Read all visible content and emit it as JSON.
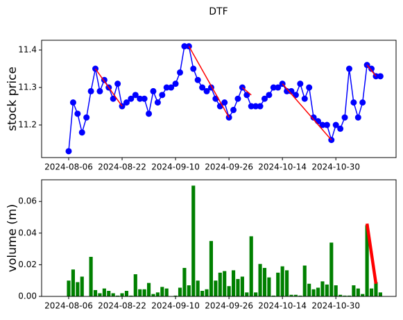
{
  "chart_data": [
    {
      "type": "line",
      "title": "DTF",
      "ylabel": "stock price",
      "ylabel_color": "#0000ff",
      "color": "#0000ff",
      "marker": "o",
      "categories": [
        "2024-08-06",
        null,
        null,
        null,
        null,
        null,
        null,
        null,
        null,
        null,
        null,
        null,
        "2024-08-22",
        null,
        null,
        null,
        null,
        null,
        null,
        null,
        null,
        null,
        null,
        null,
        "2024-09-10",
        null,
        null,
        null,
        null,
        null,
        null,
        null,
        null,
        null,
        null,
        null,
        "2024-09-26",
        null,
        null,
        null,
        null,
        null,
        null,
        null,
        null,
        null,
        null,
        null,
        "2024-10-14",
        null,
        null,
        null,
        null,
        null,
        null,
        null,
        null,
        null,
        null,
        null,
        "2024-10-30",
        null,
        null,
        null,
        null,
        null,
        null,
        null,
        null,
        null,
        null
      ],
      "values": [
        11.13,
        11.26,
        11.23,
        11.18,
        11.22,
        11.29,
        11.35,
        11.29,
        11.32,
        11.3,
        11.27,
        11.31,
        11.25,
        11.26,
        11.27,
        11.28,
        11.27,
        11.27,
        11.23,
        11.29,
        11.26,
        11.28,
        11.3,
        11.3,
        11.31,
        11.34,
        11.41,
        11.41,
        11.35,
        11.32,
        11.3,
        11.29,
        11.3,
        11.27,
        11.25,
        11.26,
        11.22,
        11.24,
        11.27,
        11.3,
        11.28,
        11.25,
        11.25,
        11.25,
        11.27,
        11.28,
        11.3,
        11.3,
        11.31,
        11.29,
        11.29,
        11.28,
        11.31,
        11.27,
        11.3,
        11.22,
        11.21,
        11.2,
        11.2,
        11.16,
        11.2,
        11.19,
        11.22,
        11.35,
        11.26,
        11.22,
        11.26,
        11.36,
        11.35,
        11.33,
        11.33
      ],
      "trend_lines": [
        {
          "x": [
            6,
            12
          ],
          "values": [
            11.35,
            11.25
          ]
        },
        {
          "x": [
            27,
            36
          ],
          "values": [
            11.41,
            11.22
          ]
        },
        {
          "x": [
            39,
            41
          ],
          "values": [
            11.3,
            11.28
          ]
        },
        {
          "x": [
            48,
            59
          ],
          "values": [
            11.31,
            11.16
          ]
        },
        {
          "x": [
            67,
            69
          ],
          "values": [
            11.36,
            11.33
          ]
        }
      ],
      "trend_color": "#ff0000",
      "ylim": [
        11.113,
        11.426
      ],
      "yticks": [
        {
          "value": 11.2,
          "label": "11.2"
        },
        {
          "value": 11.3,
          "label": "11.3"
        },
        {
          "value": 11.4,
          "label": "11.4"
        }
      ]
    },
    {
      "type": "bar",
      "ylabel": "volume (m)",
      "ylabel_color": "#008000",
      "color": "#008000",
      "categories": [
        "2024-08-06",
        null,
        null,
        null,
        null,
        null,
        null,
        null,
        null,
        null,
        null,
        null,
        "2024-08-22",
        null,
        null,
        null,
        null,
        null,
        null,
        null,
        null,
        null,
        null,
        null,
        "2024-09-10",
        null,
        null,
        null,
        null,
        null,
        null,
        null,
        null,
        null,
        null,
        null,
        "2024-09-26",
        null,
        null,
        null,
        null,
        null,
        null,
        null,
        null,
        null,
        null,
        null,
        "2024-10-14",
        null,
        null,
        null,
        null,
        null,
        null,
        null,
        null,
        null,
        null,
        null,
        "2024-10-30",
        null,
        null,
        null,
        null,
        null,
        null,
        null,
        null,
        null,
        null
      ],
      "values": [
        0.01,
        0.017,
        0.009,
        0.0125,
        0,
        0.025,
        0.004,
        0.002,
        0.005,
        0.0035,
        0.002,
        0.0005,
        0.002,
        0.0035,
        0.0005,
        0.014,
        0.0045,
        0.0045,
        0.0085,
        0.0015,
        0.0025,
        0.006,
        0.005,
        0,
        0.0005,
        0.0055,
        0.018,
        0.007,
        0.07,
        0.01,
        0.0035,
        0.0045,
        0.035,
        0.01,
        0.015,
        0.016,
        0.0065,
        0.0165,
        0.011,
        0.0125,
        0.0025,
        0.038,
        0.0025,
        0.0205,
        0.018,
        0.012,
        0.0005,
        0.015,
        0.019,
        0.0165,
        0.001,
        0.001,
        0.0005,
        0.0195,
        0.008,
        0.0045,
        0.0055,
        0.0095,
        0.0075,
        0.034,
        0.007,
        0.001,
        0.0005,
        0.0005,
        0.007,
        0.005,
        0.0015,
        0.045,
        0.005,
        0.009,
        0.0025
      ],
      "trend_lines": [
        {
          "x": [
            67,
            69
          ],
          "values": [
            0.046,
            0.008
          ]
        }
      ],
      "trend_color": "#ff0000",
      "ylim": [
        0,
        0.0737
      ],
      "yticks": [
        {
          "value": 0,
          "label": "0.00"
        },
        {
          "value": 0.02,
          "label": "0.02"
        },
        {
          "value": 0.04,
          "label": "0.04"
        },
        {
          "value": 0.06,
          "label": "0.06"
        }
      ]
    }
  ]
}
